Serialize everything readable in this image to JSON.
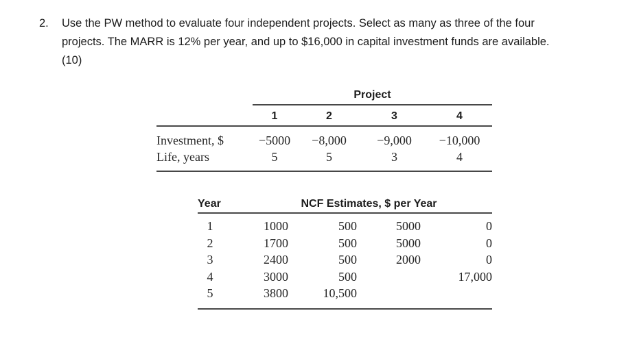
{
  "problem": {
    "number": "2.",
    "lines": [
      "Use the PW method to evaluate four independent projects. Select as many as three of the four",
      "projects. The MARR is 12% per year, and up to $16,000 in capital investment funds are available.",
      "(10)"
    ]
  },
  "projects_table": {
    "group_header": "Project",
    "columns": [
      "1",
      "2",
      "3",
      "4"
    ],
    "rows": [
      {
        "label": "Investment, $",
        "values": [
          "−5000",
          "−8,000",
          "−9,000",
          "−10,000"
        ]
      },
      {
        "label": "Life, years",
        "values": [
          "5",
          "5",
          "3",
          "4"
        ]
      }
    ]
  },
  "ncf_table": {
    "year_header": "Year",
    "ncf_header": "NCF Estimates, $ per Year",
    "rows": [
      {
        "year": "1",
        "values": [
          "1000",
          "500",
          "5000",
          "0"
        ]
      },
      {
        "year": "2",
        "values": [
          "1700",
          "500",
          "5000",
          "0"
        ]
      },
      {
        "year": "3",
        "values": [
          "2400",
          "500",
          "2000",
          "0"
        ]
      },
      {
        "year": "4",
        "values": [
          "3000",
          "500",
          "",
          "17,000"
        ]
      },
      {
        "year": "5",
        "values": [
          "3800",
          "10,500",
          "",
          ""
        ]
      }
    ]
  },
  "colors": {
    "text": "#1c1c1c",
    "table_line": "#474747"
  }
}
